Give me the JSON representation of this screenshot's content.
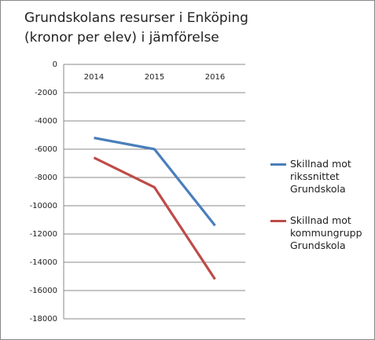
{
  "chart_data": {
    "type": "line",
    "title": "Grundskolans resurser i Enköping (kronor per elev) i jämförelse",
    "categories": [
      "2014",
      "2015",
      "2016"
    ],
    "series": [
      {
        "name": "Skillnad mot rikssnittet Grundskola",
        "color": "#4a7ebb",
        "values": [
          -5200,
          -6000,
          -11400
        ]
      },
      {
        "name": "Skillnad mot kommungrupp Grundskola",
        "color": "#be4b48",
        "values": [
          -6600,
          -8700,
          -15200
        ]
      }
    ],
    "ylim": [
      -18000,
      0
    ],
    "yticks": [
      0,
      -2000,
      -4000,
      -6000,
      -8000,
      -10000,
      -12000,
      -14000,
      -16000,
      -18000
    ],
    "grid": true,
    "legend": "right"
  }
}
